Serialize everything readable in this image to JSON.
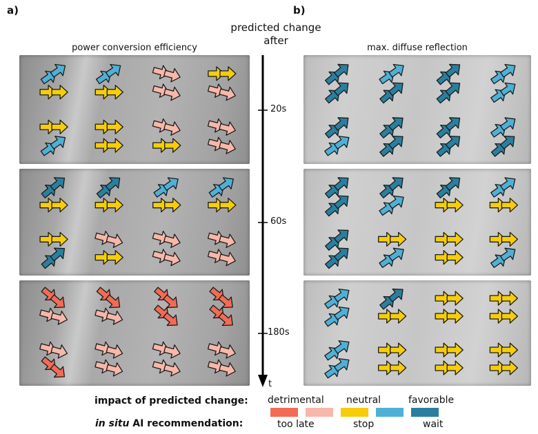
{
  "panels": {
    "a": {
      "letter": "a)",
      "title": "power conversion efficiency"
    },
    "b": {
      "letter": "b)",
      "title": "max. diffuse reflection"
    }
  },
  "timeline": {
    "title_line1": "predicted change",
    "title_line2": "after",
    "ticks": [
      "20s",
      "60s",
      "180s"
    ],
    "axis_label": "t"
  },
  "legend": {
    "impact_label": "impact of predicted change:",
    "impact_terms": [
      "detrimental",
      "neutral",
      "favorable"
    ],
    "ai_label_italic": "in situ",
    "ai_label_rest": " AI recommendation:",
    "ai_terms": [
      "too late",
      "stop",
      "wait"
    ]
  },
  "colors": {
    "too_late": "#f26b55",
    "detrimental_light": "#f7b7a9",
    "stop": "#f5cd0a",
    "wait_light": "#4fb0d6",
    "wait_dark": "#2a7f9e"
  },
  "grids": {
    "a20": [
      [
        "L",
        "L",
        "P",
        "Y"
      ],
      [
        "Y",
        "Y",
        "P",
        "P"
      ],
      [
        "Y",
        "Y",
        "P",
        "P"
      ],
      [
        "L",
        "Y",
        "Y",
        "P"
      ]
    ],
    "a60": [
      [
        "D",
        "D",
        "L",
        "L"
      ],
      [
        "Y",
        "Y",
        "Y",
        "Y"
      ],
      [
        "Y",
        "P",
        "P",
        "P"
      ],
      [
        "D",
        "Y",
        "P",
        "P"
      ]
    ],
    "a180": [
      [
        "R",
        "R",
        "R",
        "R"
      ],
      [
        "P",
        "P",
        "R",
        "R"
      ],
      [
        "P",
        "P",
        "P",
        "P"
      ],
      [
        "R",
        "P",
        "P",
        "P"
      ]
    ],
    "b20": [
      [
        "D",
        "L",
        "D",
        "L"
      ],
      [
        "D",
        "D",
        "D",
        "L"
      ],
      [
        "D",
        "D",
        "D",
        "L"
      ],
      [
        "L",
        "D",
        "D",
        "D"
      ]
    ],
    "b60": [
      [
        "D",
        "D",
        "D",
        "L"
      ],
      [
        "D",
        "L",
        "Y",
        "Y"
      ],
      [
        "D",
        "Y",
        "Y",
        "Y"
      ],
      [
        "D",
        "L",
        "Y",
        "L"
      ]
    ],
    "b180": [
      [
        "L",
        "D",
        "Y",
        "Y"
      ],
      [
        "L",
        "Y",
        "Y",
        "Y"
      ],
      [
        "L",
        "Y",
        "Y",
        "Y"
      ],
      [
        "L",
        "Y",
        "Y",
        "Y"
      ]
    ]
  }
}
